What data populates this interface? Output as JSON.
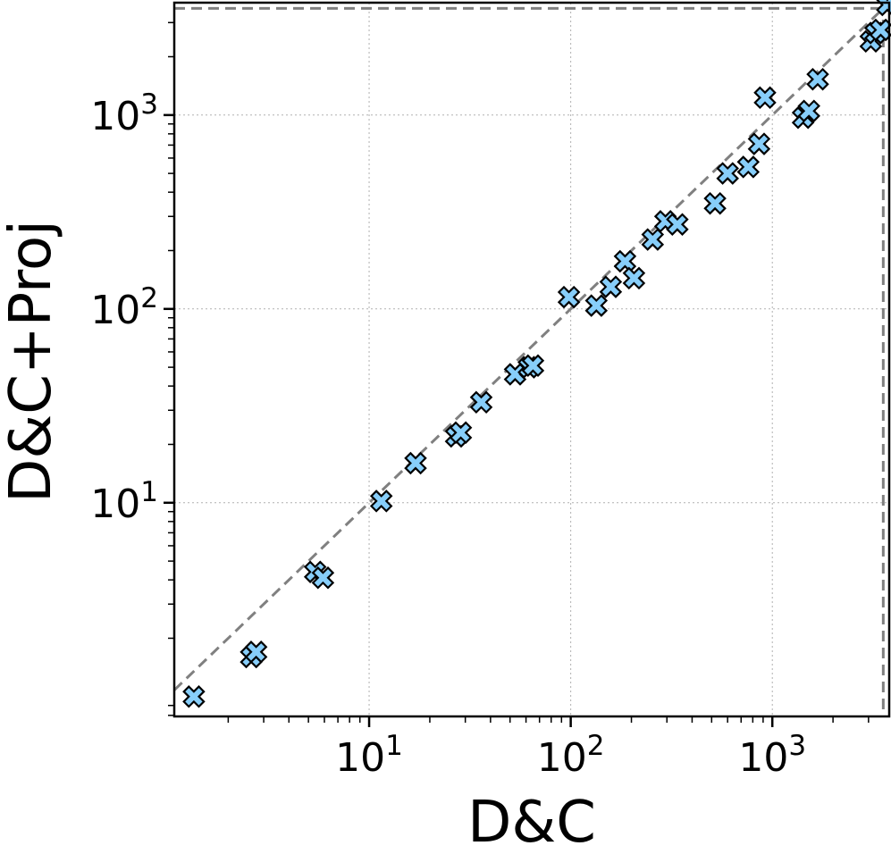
{
  "chart_data": {
    "type": "scatter",
    "xlabel": "D&C",
    "ylabel": "D&C+Proj",
    "xscale": "log",
    "yscale": "log",
    "xlim": [
      1.08,
      3800
    ],
    "ylim": [
      0.79,
      3800
    ],
    "grid": true,
    "x_ticks": [
      {
        "value": 10,
        "base": "10",
        "exp": "1"
      },
      {
        "value": 100,
        "base": "10",
        "exp": "2"
      },
      {
        "value": 1000,
        "base": "10",
        "exp": "3"
      }
    ],
    "y_ticks": [
      {
        "value": 10,
        "base": "10",
        "exp": "1"
      },
      {
        "value": 100,
        "base": "10",
        "exp": "2"
      },
      {
        "value": 1000,
        "base": "10",
        "exp": "3"
      }
    ],
    "reference_line": {
      "type": "y=x",
      "style": "dashed",
      "color": "#808080"
    },
    "limit_lines": {
      "x": 3550,
      "y": 3550,
      "style": "dashed",
      "color": "#808080"
    },
    "marker": {
      "shape": "X",
      "fill": "#87cefa",
      "edge": "#000000"
    },
    "points": [
      {
        "x": 1.35,
        "y": 1.0
      },
      {
        "x": 2.6,
        "y": 1.6
      },
      {
        "x": 2.75,
        "y": 1.7
      },
      {
        "x": 5.4,
        "y": 4.4
      },
      {
        "x": 5.9,
        "y": 4.1
      },
      {
        "x": 11.5,
        "y": 10.2
      },
      {
        "x": 17,
        "y": 16
      },
      {
        "x": 27,
        "y": 22
      },
      {
        "x": 28.5,
        "y": 23
      },
      {
        "x": 36,
        "y": 33
      },
      {
        "x": 53,
        "y": 46
      },
      {
        "x": 62,
        "y": 50
      },
      {
        "x": 65,
        "y": 51
      },
      {
        "x": 98,
        "y": 115
      },
      {
        "x": 134,
        "y": 104
      },
      {
        "x": 158,
        "y": 130
      },
      {
        "x": 186,
        "y": 176
      },
      {
        "x": 206,
        "y": 144
      },
      {
        "x": 255,
        "y": 228
      },
      {
        "x": 295,
        "y": 283
      },
      {
        "x": 338,
        "y": 273
      },
      {
        "x": 520,
        "y": 350
      },
      {
        "x": 600,
        "y": 500
      },
      {
        "x": 760,
        "y": 540
      },
      {
        "x": 860,
        "y": 710
      },
      {
        "x": 920,
        "y": 1230
      },
      {
        "x": 1420,
        "y": 970
      },
      {
        "x": 1520,
        "y": 1050
      },
      {
        "x": 1680,
        "y": 1530
      },
      {
        "x": 3080,
        "y": 2400
      },
      {
        "x": 3250,
        "y": 2650
      },
      {
        "x": 3450,
        "y": 2750
      },
      {
        "x": 3720,
        "y": 3700
      }
    ]
  }
}
